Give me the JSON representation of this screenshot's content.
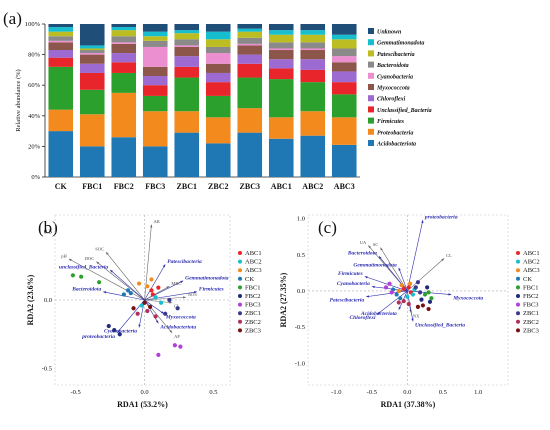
{
  "panels": {
    "a": {
      "label": "(a)"
    },
    "b": {
      "label": "(b)"
    },
    "c": {
      "label": "(c)"
    }
  },
  "chart_data": [
    {
      "type": "bar",
      "stacked": true,
      "ylabel": "Relative abundance (%)",
      "ylim": [
        0,
        100
      ],
      "yticks": [
        "0%",
        "20%",
        "40%",
        "60%",
        "80%",
        "100%"
      ],
      "categories": [
        "CK",
        "FBC1",
        "FBC2",
        "FBC3",
        "ZBC1",
        "ZBC2",
        "ZBC3",
        "ABC1",
        "ABC2",
        "ABC3"
      ],
      "legend_placement": "right",
      "series": [
        {
          "name": "Acidobacteriota",
          "color": "#1f77b4",
          "values": [
            30,
            20,
            26,
            20,
            29,
            22,
            29,
            25,
            27,
            21
          ]
        },
        {
          "name": "Proteobacteria",
          "color": "#f28a1e",
          "values": [
            14,
            21,
            29,
            23,
            14,
            17,
            16,
            14,
            16,
            18
          ]
        },
        {
          "name": "Firmicutes",
          "color": "#2ca02c",
          "values": [
            28,
            16,
            13,
            10,
            22,
            14,
            20,
            25,
            19,
            15
          ]
        },
        {
          "name": "Unclassified_Bacteria",
          "color": "#e8252a",
          "values": [
            6,
            11,
            7,
            7,
            7,
            9,
            9,
            7,
            8,
            8
          ]
        },
        {
          "name": "Chloroflexi",
          "color": "#9c6ad0",
          "values": [
            5,
            6,
            6,
            6,
            7,
            6,
            6,
            6,
            7,
            7
          ]
        },
        {
          "name": "Myxococcota",
          "color": "#8c564b",
          "values": [
            5,
            6,
            6,
            6,
            6,
            6,
            6,
            6,
            6,
            6
          ]
        },
        {
          "name": "Cyanobacteria",
          "color": "#ec8fd0",
          "values": [
            1,
            1,
            1,
            13,
            1,
            7,
            1,
            1,
            1,
            4
          ]
        },
        {
          "name": "Bacteroidota",
          "color": "#8a8a8a",
          "values": [
            3,
            2,
            4,
            4,
            4,
            4,
            4,
            4,
            4,
            5
          ]
        },
        {
          "name": "Patescibacteria",
          "color": "#bcbd22",
          "values": [
            3,
            1,
            4,
            3,
            4,
            5,
            4,
            5,
            5,
            6
          ]
        },
        {
          "name": "Gemmatimonadota",
          "color": "#17becf",
          "values": [
            3,
            2,
            2,
            3,
            2,
            5,
            2,
            3,
            3,
            3
          ]
        },
        {
          "name": "Unknown",
          "color": "#1f4e79",
          "values": [
            2,
            14,
            2,
            5,
            4,
            5,
            3,
            4,
            4,
            7
          ]
        }
      ]
    },
    {
      "type": "scatter",
      "subtype": "RDA biplot",
      "xlabel": "RDA1 (53.2%)",
      "ylabel": "RDA2 (23.6%)",
      "xlim": [
        -0.65,
        0.62
      ],
      "ylim": [
        -0.62,
        0.62
      ],
      "xticks": [
        -0.5,
        0.0,
        0.5
      ],
      "yticks": [
        -0.5,
        0.0,
        0.5
      ],
      "legend_placement": "right",
      "groups": [
        {
          "name": "ABC1",
          "color": "#e8252a"
        },
        {
          "name": "ABC2",
          "color": "#17becf"
        },
        {
          "name": "ABC3",
          "color": "#f28a1e"
        },
        {
          "name": "CK",
          "color": "#1f77b4"
        },
        {
          "name": "FBC1",
          "color": "#2ca02c"
        },
        {
          "name": "FBC2",
          "color": "#1f2a7a"
        },
        {
          "name": "FBC3",
          "color": "#b040d8"
        },
        {
          "name": "ZBC1",
          "color": "#3a3a8a"
        },
        {
          "name": "ZBC2",
          "color": "#b0305a"
        },
        {
          "name": "ZBC3",
          "color": "#7a1010"
        }
      ],
      "points": [
        {
          "group": "FBC1",
          "x": -0.52,
          "y": 0.18
        },
        {
          "group": "FBC1",
          "x": -0.46,
          "y": 0.17
        },
        {
          "group": "FBC1",
          "x": -0.33,
          "y": 0.13
        },
        {
          "group": "CK",
          "x": -0.15,
          "y": 0.04
        },
        {
          "group": "CK",
          "x": -0.12,
          "y": 0.07
        },
        {
          "group": "CK",
          "x": -0.1,
          "y": 0.05
        },
        {
          "group": "ABC3",
          "x": -0.04,
          "y": 0.12
        },
        {
          "group": "ABC3",
          "x": 0.05,
          "y": 0.15
        },
        {
          "group": "ABC3",
          "x": 0.02,
          "y": 0.1
        },
        {
          "group": "ABC1",
          "x": 0.05,
          "y": 0.07
        },
        {
          "group": "ABC1",
          "x": 0.1,
          "y": 0.09
        },
        {
          "group": "ABC1",
          "x": 0.06,
          "y": 0.04
        },
        {
          "group": "ABC2",
          "x": 0.08,
          "y": 0.02
        },
        {
          "group": "ABC2",
          "x": 0.12,
          "y": -0.02
        },
        {
          "group": "ABC2",
          "x": -0.02,
          "y": -0.04
        },
        {
          "group": "FBC2",
          "x": -0.22,
          "y": -0.22
        },
        {
          "group": "FBC2",
          "x": -0.18,
          "y": -0.25
        },
        {
          "group": "FBC2",
          "x": -0.26,
          "y": -0.19
        },
        {
          "group": "FBC3",
          "x": 0.22,
          "y": -0.33
        },
        {
          "group": "FBC3",
          "x": 0.26,
          "y": -0.34
        },
        {
          "group": "FBC3",
          "x": 0.1,
          "y": -0.4
        },
        {
          "group": "ZBC1",
          "x": 0.18,
          "y": 0.0
        },
        {
          "group": "ZBC1",
          "x": 0.24,
          "y": -0.06
        },
        {
          "group": "ZBC1",
          "x": 0.15,
          "y": -0.1
        },
        {
          "group": "ZBC2",
          "x": 0.02,
          "y": -0.08
        },
        {
          "group": "ZBC2",
          "x": 0.08,
          "y": -0.12
        },
        {
          "group": "ZBC2",
          "x": -0.05,
          "y": -0.1
        },
        {
          "group": "ZBC3",
          "x": 0.0,
          "y": -0.02
        },
        {
          "group": "ZBC3",
          "x": -0.08,
          "y": -0.06
        },
        {
          "group": "ZBC3",
          "x": 0.04,
          "y": -0.05
        }
      ],
      "vectors": [
        {
          "label": "AK",
          "x": 0.05,
          "y": 0.55,
          "kind": "env"
        },
        {
          "label": "pH",
          "x": -0.55,
          "y": 0.3,
          "kind": "env"
        },
        {
          "label": "SOC",
          "x": -0.28,
          "y": 0.35,
          "kind": "env"
        },
        {
          "label": "DOC",
          "x": -0.35,
          "y": 0.28,
          "kind": "env"
        },
        {
          "label": "unclassified_Bacteria",
          "x": -0.25,
          "y": 0.22,
          "kind": "taxon"
        },
        {
          "label": "Bacteroidota",
          "x": -0.3,
          "y": 0.06,
          "kind": "taxon"
        },
        {
          "label": "Patescibacteria",
          "x": 0.15,
          "y": 0.26,
          "kind": "taxon"
        },
        {
          "label": "Gemmatimonadota",
          "x": 0.28,
          "y": 0.14,
          "kind": "taxon"
        },
        {
          "label": "Firmicutes",
          "x": 0.38,
          "y": 0.06,
          "kind": "taxon"
        },
        {
          "label": "MBC",
          "x": 0.18,
          "y": 0.1,
          "kind": "env"
        },
        {
          "label": "NO3",
          "x": 0.3,
          "y": 0.02,
          "kind": "env"
        },
        {
          "label": "CL",
          "x": 0.2,
          "y": -0.02,
          "kind": "env"
        },
        {
          "label": "Myxococcota",
          "x": 0.14,
          "y": -0.1,
          "kind": "taxon"
        },
        {
          "label": "Acidobacteriota",
          "x": 0.1,
          "y": -0.17,
          "kind": "taxon"
        },
        {
          "label": "AP",
          "x": 0.2,
          "y": -0.24,
          "kind": "env"
        },
        {
          "label": "proteobacteria",
          "x": -0.2,
          "y": -0.24,
          "kind": "taxon"
        },
        {
          "label": "Cyanobacteria",
          "x": -0.04,
          "y": -0.2,
          "kind": "taxon"
        }
      ]
    },
    {
      "type": "scatter",
      "subtype": "RDA biplot",
      "xlabel": "RDA1 (37.38%)",
      "ylabel": "RDA2 (27.35%)",
      "xlim": [
        -1.4,
        1.42
      ],
      "ylim": [
        -1.3,
        1.05
      ],
      "xticks": [
        -1.0,
        -0.5,
        0.0,
        0.5,
        1.0
      ],
      "yticks": [
        -1.0,
        -0.5,
        0.0,
        0.5,
        1.0
      ],
      "legend_placement": "right",
      "groups": [
        {
          "name": "ABC1",
          "color": "#e8252a"
        },
        {
          "name": "ABC2",
          "color": "#17becf"
        },
        {
          "name": "ABC3",
          "color": "#f28a1e"
        },
        {
          "name": "CK",
          "color": "#1f77b4"
        },
        {
          "name": "FBC1",
          "color": "#2ca02c"
        },
        {
          "name": "FBC2",
          "color": "#1f2a7a"
        },
        {
          "name": "FBC3",
          "color": "#b040d8"
        },
        {
          "name": "ZBC1",
          "color": "#3a3a8a"
        },
        {
          "name": "ZBC2",
          "color": "#b0305a"
        },
        {
          "name": "ZBC3",
          "color": "#7a1010"
        }
      ],
      "points": [
        {
          "group": "ABC1",
          "x": 0.02,
          "y": 0.05
        },
        {
          "group": "ABC1",
          "x": 0.05,
          "y": -0.02
        },
        {
          "group": "ABC1",
          "x": -0.05,
          "y": 0.03
        },
        {
          "group": "ABC2",
          "x": 0.08,
          "y": -0.05
        },
        {
          "group": "ABC2",
          "x": 0.0,
          "y": -0.08
        },
        {
          "group": "ABC2",
          "x": 0.1,
          "y": 0.02
        },
        {
          "group": "ABC3",
          "x": -0.12,
          "y": 0.0
        },
        {
          "group": "ABC3",
          "x": -0.08,
          "y": 0.08
        },
        {
          "group": "ABC3",
          "x": 0.04,
          "y": 0.1
        },
        {
          "group": "CK",
          "x": -0.15,
          "y": -0.05
        },
        {
          "group": "CK",
          "x": -0.2,
          "y": 0.02
        },
        {
          "group": "CK",
          "x": -0.1,
          "y": -0.1
        },
        {
          "group": "FBC1",
          "x": 0.3,
          "y": -0.02
        },
        {
          "group": "FBC1",
          "x": 0.34,
          "y": -0.1
        },
        {
          "group": "FBC1",
          "x": 0.25,
          "y": -0.05
        },
        {
          "group": "FBC2",
          "x": 0.28,
          "y": 0.05
        },
        {
          "group": "FBC2",
          "x": 0.32,
          "y": -0.15
        },
        {
          "group": "FBC2",
          "x": 0.2,
          "y": -0.12
        },
        {
          "group": "FBC3",
          "x": -0.25,
          "y": 0.1
        },
        {
          "group": "FBC3",
          "x": -0.3,
          "y": 0.05
        },
        {
          "group": "FBC3",
          "x": -0.22,
          "y": -0.02
        },
        {
          "group": "ZBC1",
          "x": 0.15,
          "y": 0.12
        },
        {
          "group": "ZBC1",
          "x": 0.18,
          "y": -0.02
        },
        {
          "group": "ZBC1",
          "x": 0.12,
          "y": 0.05
        },
        {
          "group": "ZBC2",
          "x": -0.05,
          "y": -0.14
        },
        {
          "group": "ZBC2",
          "x": 0.02,
          "y": -0.18
        },
        {
          "group": "ZBC2",
          "x": -0.12,
          "y": -0.16
        },
        {
          "group": "ZBC3",
          "x": 0.22,
          "y": -0.2
        },
        {
          "group": "ZBC3",
          "x": 0.3,
          "y": -0.25
        },
        {
          "group": "ZBC3",
          "x": 0.15,
          "y": -0.22
        }
      ],
      "vectors": [
        {
          "label": "proteobacteria",
          "x": 0.22,
          "y": 0.98,
          "kind": "taxon"
        },
        {
          "label": "CL",
          "x": 0.52,
          "y": 0.45,
          "kind": "env"
        },
        {
          "label": "UA",
          "x": -0.55,
          "y": 0.63,
          "kind": "env"
        },
        {
          "label": "SC",
          "x": -0.38,
          "y": 0.6,
          "kind": "env"
        },
        {
          "label": "Bacteroidota",
          "x": -0.4,
          "y": 0.48,
          "kind": "taxon"
        },
        {
          "label": "Gemmatimonadota",
          "x": -0.12,
          "y": 0.32,
          "kind": "taxon"
        },
        {
          "label": "Firmicutes",
          "x": -0.6,
          "y": 0.2,
          "kind": "taxon"
        },
        {
          "label": "Cyanobacteria",
          "x": -0.5,
          "y": 0.06,
          "kind": "taxon"
        },
        {
          "label": "Patescibacteria",
          "x": -0.58,
          "y": -0.08,
          "kind": "taxon"
        },
        {
          "label": "Chloroflexi",
          "x": -0.42,
          "y": -0.32,
          "kind": "taxon"
        },
        {
          "label": "Acidobacteriota",
          "x": -0.12,
          "y": -0.26,
          "kind": "taxon"
        },
        {
          "label": "NX",
          "x": 0.05,
          "y": -0.3,
          "kind": "env"
        },
        {
          "label": "Unclassified_Bacteria",
          "x": 0.08,
          "y": -0.42,
          "kind": "taxon"
        },
        {
          "label": "Myxococcota",
          "x": 0.62,
          "y": -0.05,
          "kind": "taxon"
        }
      ]
    }
  ]
}
